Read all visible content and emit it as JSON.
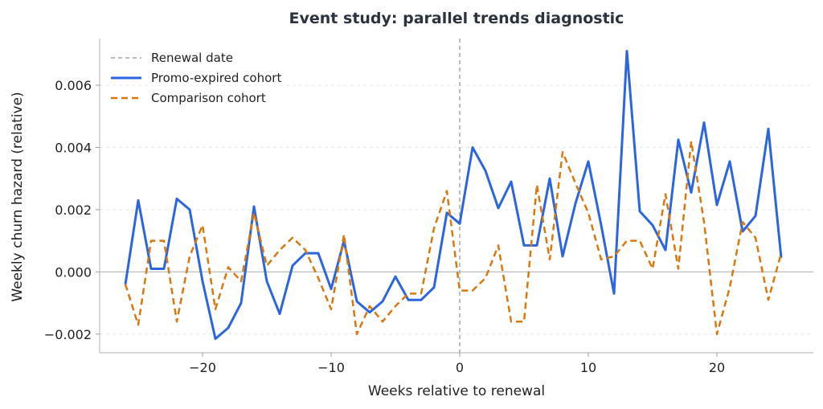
{
  "chart_data": {
    "type": "line",
    "title": "Event study: parallel trends diagnostic",
    "xlabel": "Weeks relative to renewal",
    "ylabel": "Weekly churn hazard (relative)",
    "xlim": [
      -28.0,
      27.5
    ],
    "ylim": [
      -0.0026,
      0.0075
    ],
    "xticks": [
      -20,
      -10,
      0,
      10,
      20
    ],
    "xtick_labels": [
      "−20",
      "−10",
      "0",
      "10",
      "20"
    ],
    "yticks": [
      -0.002,
      0.0,
      0.002,
      0.004,
      0.006
    ],
    "ytick_labels": [
      "−0.002",
      "0.000",
      "0.002",
      "0.004",
      "0.006"
    ],
    "grid": "horizontal dashed",
    "legend_position": "top-left",
    "event_line": {
      "x": 0,
      "label": "Renewal date",
      "color": "#a6a6a6"
    },
    "zero_line": true,
    "x": [
      -26,
      -25,
      -24,
      -23,
      -22,
      -21,
      -20,
      -19,
      -18,
      -17,
      -16,
      -15,
      -14,
      -13,
      -12,
      -11,
      -10,
      -9,
      -8,
      -7,
      -6,
      -5,
      -4,
      -3,
      -2,
      -1,
      0,
      1,
      2,
      3,
      4,
      5,
      6,
      7,
      8,
      9,
      10,
      11,
      12,
      13,
      14,
      15,
      16,
      17,
      18,
      19,
      20,
      21,
      22,
      23,
      24,
      25
    ],
    "series": [
      {
        "name": "Promo-expired cohort",
        "color": "#2b65e0",
        "style": "solid",
        "values": [
          -0.0004,
          0.0023,
          0.0001,
          0.0001,
          0.00235,
          0.002,
          -0.0003,
          -0.00215,
          -0.0018,
          -0.001,
          0.0021,
          -0.0003,
          -0.00135,
          0.0002,
          0.0006,
          0.0006,
          -0.00055,
          0.001,
          -0.00095,
          -0.0013,
          -0.00095,
          -0.00015,
          -0.0009,
          -0.0009,
          -0.0005,
          0.0019,
          0.00155,
          0.004,
          0.00325,
          0.00205,
          0.0029,
          0.00085,
          0.00085,
          0.003,
          0.0005,
          0.0022,
          0.00355,
          0.0015,
          -0.0007,
          0.0071,
          0.00195,
          0.0015,
          0.0007,
          0.00425,
          0.00255,
          0.0048,
          0.00215,
          0.00355,
          0.0013,
          0.0018,
          0.0046,
          0.00045
        ]
      },
      {
        "name": "Comparison cohort",
        "color": "#d9780f",
        "style": "dashed",
        "values": [
          -0.0004,
          -0.0017,
          0.001,
          0.001,
          -0.0016,
          0.0005,
          0.0015,
          -0.0012,
          0.00015,
          -0.0003,
          0.0019,
          0.0002,
          0.0007,
          0.0011,
          0.0007,
          -0.0002,
          -0.0012,
          0.0012,
          -0.002,
          -0.0011,
          -0.0016,
          -0.0011,
          -0.0007,
          -0.0007,
          0.0014,
          0.0026,
          -0.0006,
          -0.0006,
          -0.0002,
          0.00085,
          -0.0016,
          -0.0016,
          0.0028,
          0.0004,
          0.00385,
          0.00285,
          0.0019,
          0.0004,
          0.0005,
          0.001,
          0.001,
          0.0001,
          0.0025,
          0.0001,
          0.0042,
          0.0016,
          -0.002,
          -0.0005,
          0.0016,
          0.0011,
          -0.0009,
          0.0006
        ]
      }
    ]
  }
}
